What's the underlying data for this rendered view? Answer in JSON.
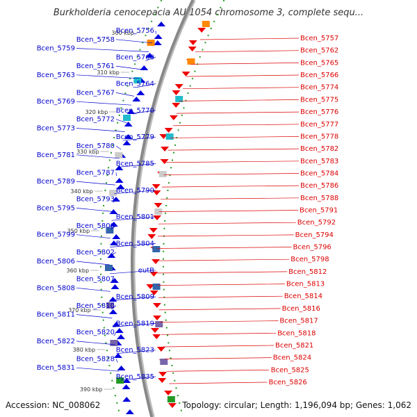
{
  "title": "Burkholderia cenocepacia AU 1054 chromosome 3, complete sequ...",
  "footer": {
    "accession": "Accession: NC_008062",
    "topology": "Topology: circular; Length: 1,196,094 bp; Genes: 1,062"
  },
  "colors": {
    "left_genes": "#0000cc",
    "right_genes": "#dd0000",
    "backbone": "#888888",
    "tick": "#229922"
  },
  "scale_ticks": [
    {
      "label": "300 kbp"
    },
    {
      "label": "310 kbp"
    },
    {
      "label": "320 kbp"
    },
    {
      "label": "330 kbp"
    },
    {
      "label": "340 kbp"
    },
    {
      "label": "350 kbp"
    },
    {
      "label": "360 kbp"
    },
    {
      "label": "370 kbp"
    },
    {
      "label": "380 kbp"
    },
    {
      "label": "390 kbp"
    }
  ],
  "left_genes": [
    "Bcen_5756",
    "Bcen_5758",
    "Bcen_5759",
    "Bcen_5760",
    "Bcen_5761",
    "Bcen_5763",
    "Bcen_5764",
    "Bcen_5767",
    "Bcen_5769",
    "Bcen_5770",
    "Bcen_5772",
    "Bcen_5773",
    "Bcen_5779",
    "Bcen_5780",
    "Bcen_5781",
    "Bcen_5785",
    "Bcen_5787",
    "Bcen_5789",
    "Bcen_5790",
    "Bcen_5793",
    "Bcen_5795",
    "Bcen_5801",
    "Bcen_5800",
    "Bcen_5799",
    "Bcen_5804",
    "Bcen_5802",
    "Bcen_5806",
    "eutB",
    "Bcen_5807",
    "Bcen_5808",
    "Bcen_5809",
    "Bcen_5810",
    "Bcen_5811",
    "Bcen_5819",
    "Bcen_5820",
    "Bcen_5822",
    "Bcen_5823",
    "Bcen_5828",
    "Bcen_5831",
    "Bcen_5835"
  ],
  "right_genes": [
    "Bcen_5757",
    "Bcen_5762",
    "Bcen_5765",
    "Bcen_5766",
    "Bcen_5774",
    "Bcen_5775",
    "Bcen_5776",
    "Bcen_5777",
    "Bcen_5778",
    "Bcen_5782",
    "Bcen_5783",
    "Bcen_5784",
    "Bcen_5786",
    "Bcen_5788",
    "Bcen_5791",
    "Bcen_5792",
    "Bcen_5794",
    "Bcen_5796",
    "Bcen_5798",
    "Bcen_5812",
    "Bcen_5813",
    "Bcen_5814",
    "Bcen_5816",
    "Bcen_5817",
    "Bcen_5818",
    "Bcen_5821",
    "Bcen_5824",
    "Bcen_5825",
    "Bcen_5826"
  ]
}
